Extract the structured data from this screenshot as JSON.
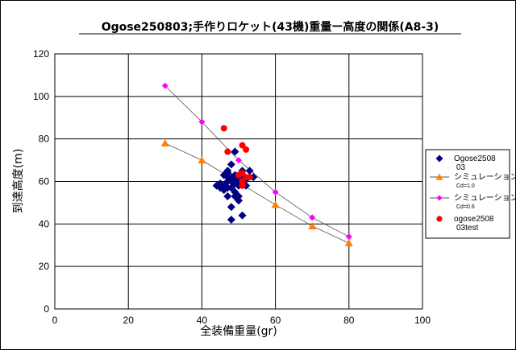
{
  "chart_data": {
    "type": "scatter",
    "title": "Ogose250803;手作りロケット(43機)重量ー高度の関係(A8-3)",
    "xlabel": "全装備重量(gr)",
    "ylabel": "到達高度(m)",
    "xlim": [
      0,
      100
    ],
    "ylim": [
      0,
      120
    ],
    "x_ticks": [
      0,
      20,
      40,
      60,
      80,
      100
    ],
    "y_ticks": [
      0,
      20,
      40,
      60,
      80,
      100,
      120
    ],
    "x_tick_labels": [
      "0",
      "20",
      "40",
      "60",
      "80",
      "100"
    ],
    "y_tick_labels": [
      "0",
      "20",
      "40",
      "60",
      "80",
      "100",
      "120"
    ],
    "grid": "major-both",
    "legend_position": "right",
    "colors": {
      "series1": "#000080",
      "series2": "#ff8000",
      "series3": "#ff00ff",
      "series4": "#ff0000",
      "plot_bg": "#ffffff",
      "grid": "#000000"
    },
    "series": [
      {
        "name": "Ogose250803",
        "legend_label": [
          "Ogose2508",
          "03"
        ],
        "marker": "diamond",
        "line": false,
        "points": [
          [
            44,
            58
          ],
          [
            45,
            57
          ],
          [
            45,
            59
          ],
          [
            46,
            56
          ],
          [
            46,
            58
          ],
          [
            46,
            63
          ],
          [
            47,
            62
          ],
          [
            47,
            64
          ],
          [
            47,
            65
          ],
          [
            47,
            57
          ],
          [
            47,
            60
          ],
          [
            47,
            53
          ],
          [
            48,
            68
          ],
          [
            48,
            62
          ],
          [
            48,
            60
          ],
          [
            48,
            57
          ],
          [
            48,
            48
          ],
          [
            48,
            42
          ],
          [
            49,
            63
          ],
          [
            49,
            61
          ],
          [
            49,
            59
          ],
          [
            49,
            55
          ],
          [
            49,
            53
          ],
          [
            49,
            74
          ],
          [
            50,
            60
          ],
          [
            50,
            58
          ],
          [
            50,
            53
          ],
          [
            50,
            51
          ],
          [
            51,
            65
          ],
          [
            51,
            62
          ],
          [
            51,
            59
          ],
          [
            51,
            44
          ],
          [
            52,
            61
          ],
          [
            52,
            58
          ],
          [
            53,
            65
          ],
          [
            54,
            62
          ]
        ]
      },
      {
        "name": "シミュレーション Cd=1.0",
        "legend_label": [
          "シミュレーション",
          "Cd=1.0"
        ],
        "marker": "triangle",
        "line": true,
        "points": [
          [
            30,
            78
          ],
          [
            40,
            70
          ],
          [
            60,
            49
          ],
          [
            70,
            39
          ],
          [
            80,
            31
          ]
        ]
      },
      {
        "name": "シミュレーション Cd=0.6",
        "legend_label": [
          "シミュレーション",
          "Cd=0.6"
        ],
        "marker": "diamond",
        "line": true,
        "points": [
          [
            30,
            105
          ],
          [
            40,
            88
          ],
          [
            50,
            70
          ],
          [
            60,
            55
          ],
          [
            70,
            43
          ],
          [
            80,
            34
          ]
        ]
      },
      {
        "name": "ogose250803test",
        "legend_label": [
          "ogose2508",
          "03test"
        ],
        "marker": "circle",
        "line": false,
        "points": [
          [
            46,
            85
          ],
          [
            47,
            74
          ],
          [
            50,
            63
          ],
          [
            51,
            77
          ],
          [
            51,
            64
          ],
          [
            51,
            60
          ],
          [
            51,
            58
          ],
          [
            52,
            75
          ],
          [
            52,
            62
          ],
          [
            53,
            62
          ]
        ]
      }
    ]
  }
}
